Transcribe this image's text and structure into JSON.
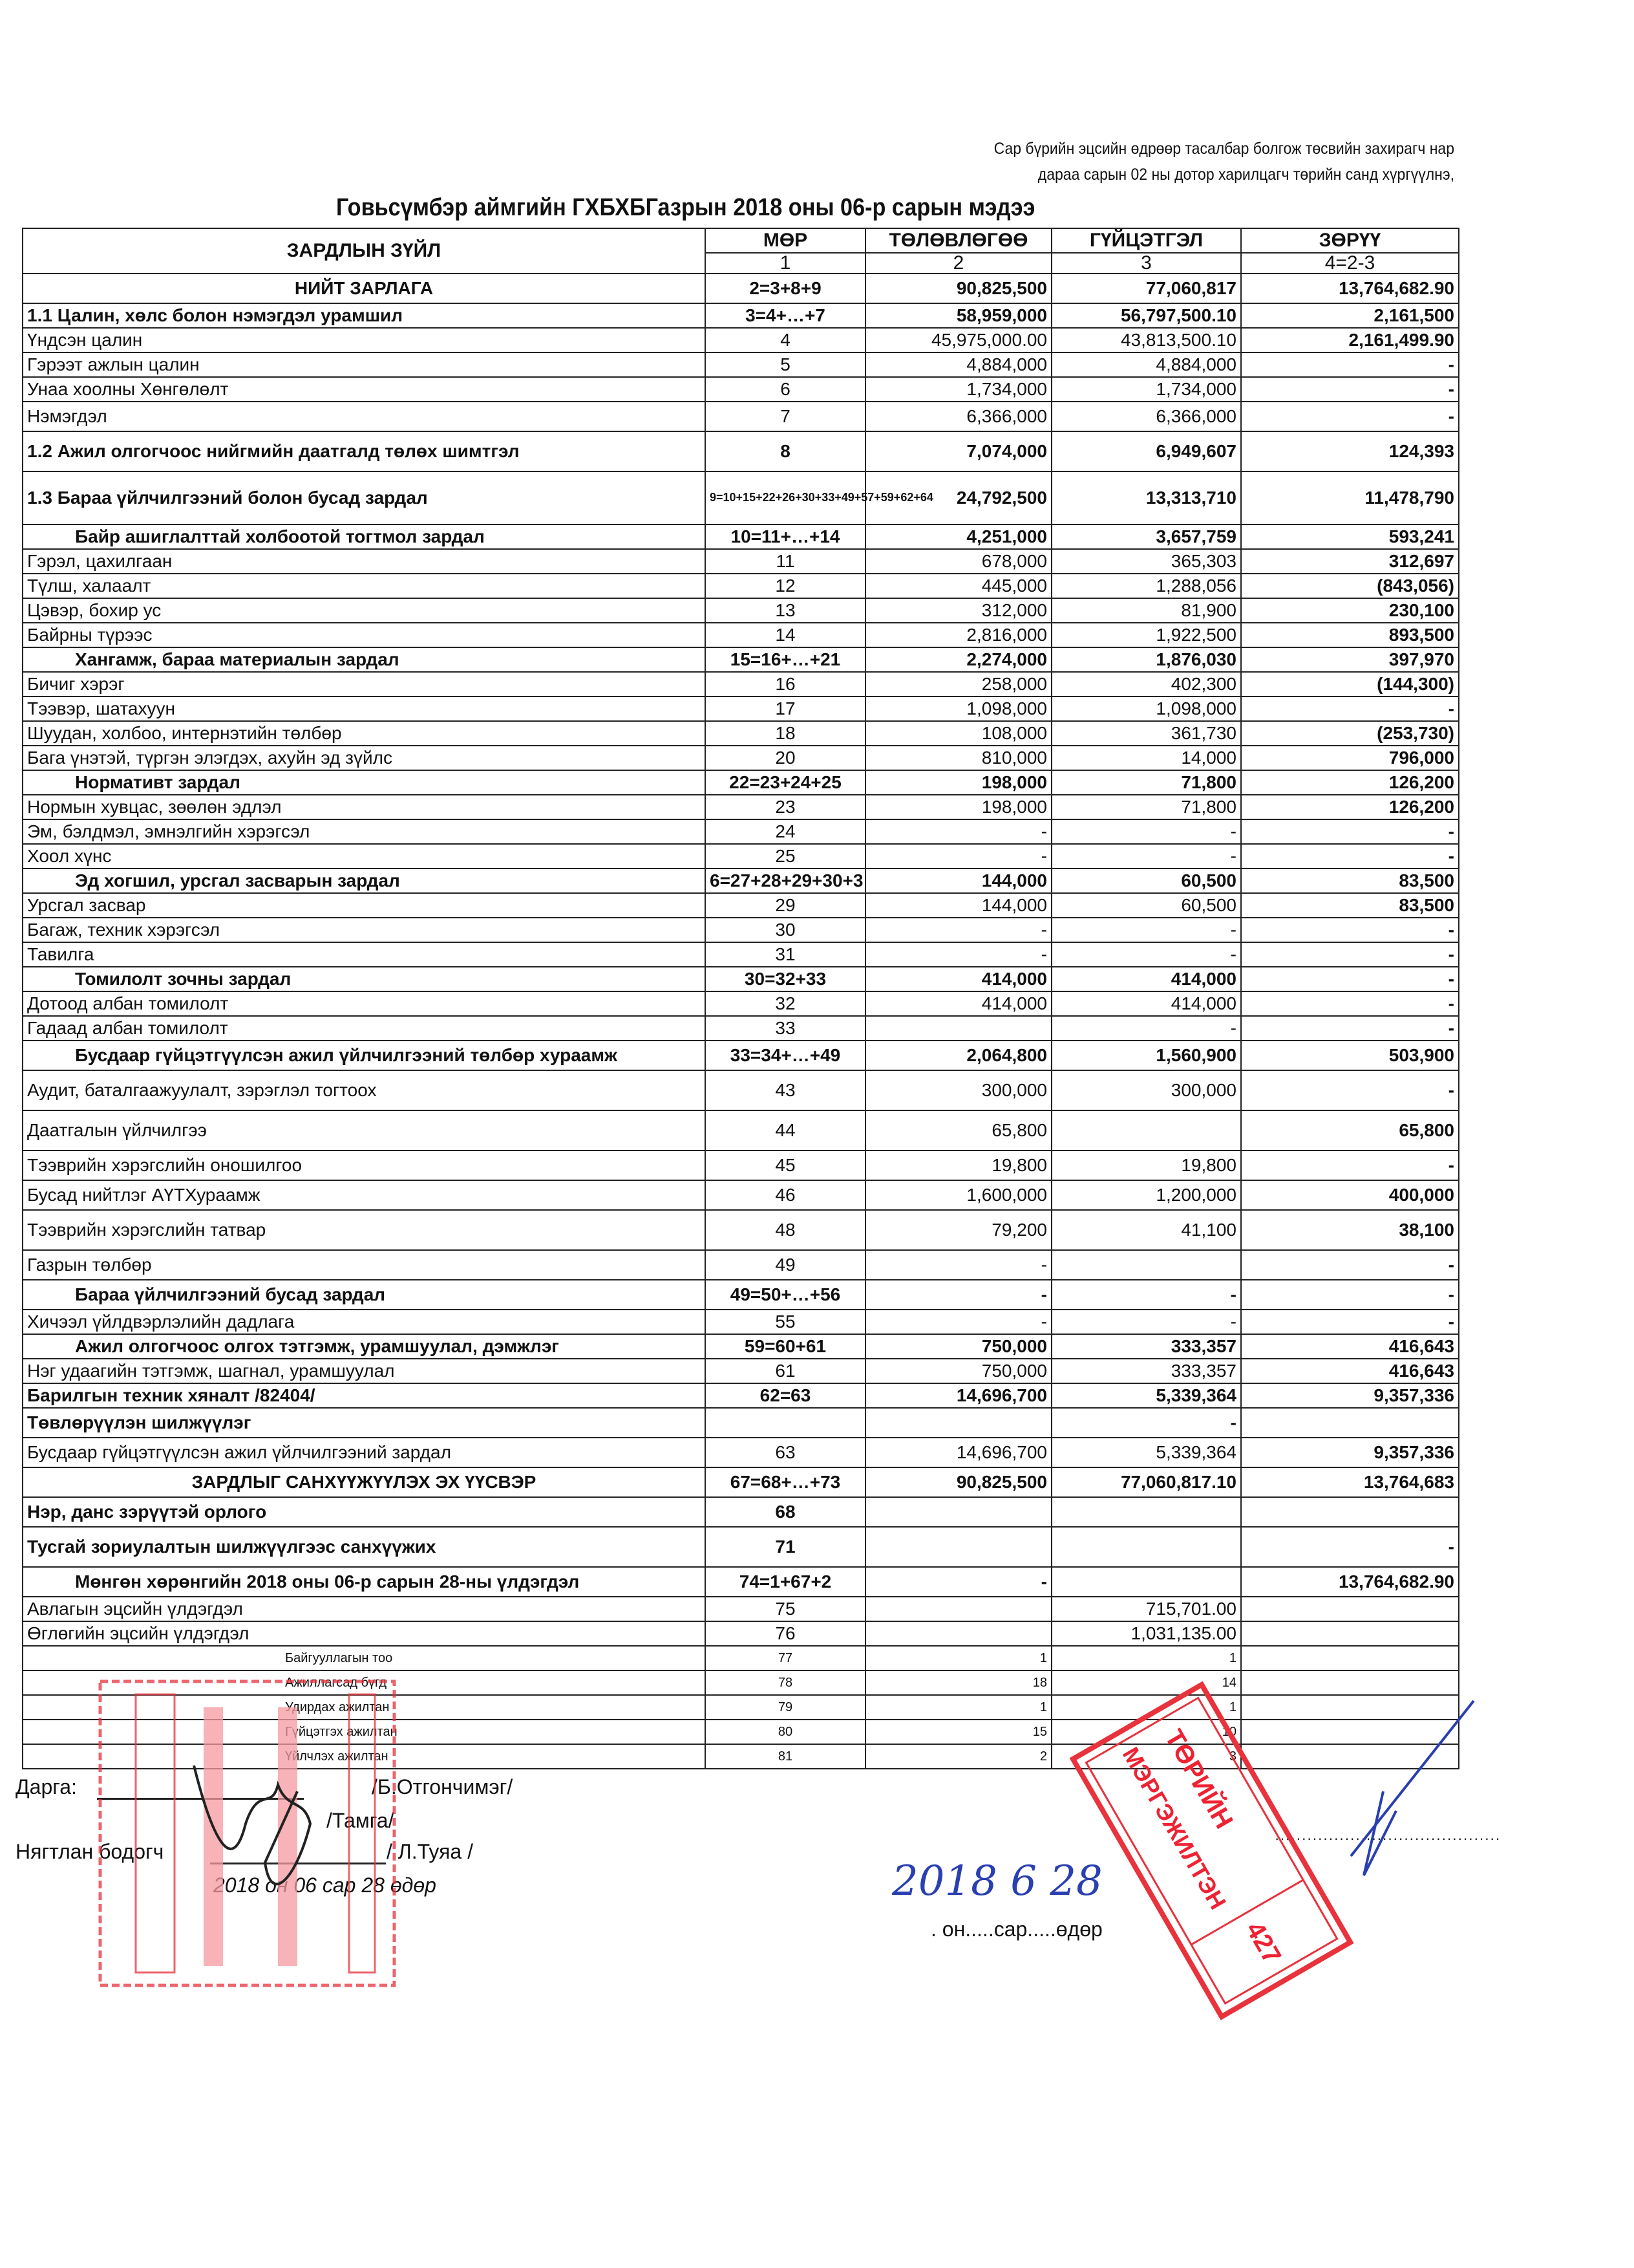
{
  "note": {
    "line1": "Сар бүрийн эцсийн өдрөөр тасалбар болгож төсвийн захирагч нар",
    "line2": "дараа сарын 02 ны  дотор харилцагч төрийн санд хүргүүлнэ,"
  },
  "title": "Говьсүмбэр аймгийн ГХБХБГазрын 2018 оны 06-р сарын мэдээ",
  "table": {
    "headers": {
      "item": "ЗАРДЛЫН ЗҮЙЛ",
      "mor": "МӨР",
      "plan": "ТӨЛӨВЛӨГӨӨ",
      "actual": "ГҮЙЦЭТГЭЛ",
      "diff": "ЗӨРҮҮ",
      "mor_n": "1",
      "plan_n": "2",
      "actual_n": "3",
      "diff_n": "4=2-3"
    },
    "rows": [
      {
        "label": "НИЙТ ЗАРЛАГА",
        "mor": "2=3+8+9",
        "plan": "90,825,500",
        "actual": "77,060,817",
        "diff": "13,764,682.90",
        "style": "b center mid"
      },
      {
        "label": "1.1 Цалин, хөлс болон нэмэгдэл урамшил",
        "mor": "3=4+…+7",
        "plan": "58,959,000",
        "actual": "56,797,500.10",
        "diff": "2,161,500",
        "style": "b"
      },
      {
        "label": "Үндсэн цалин",
        "mor": "4",
        "plan": "45,975,000.00",
        "actual": "43,813,500.10",
        "diff": "2,161,499.90",
        "style": "dbold"
      },
      {
        "label": "Гэрээт ажлын цалин",
        "mor": "5",
        "plan": "4,884,000",
        "actual": "4,884,000",
        "diff": "-",
        "style": "dbold"
      },
      {
        "label": "Унаа хоолны Хөнгөлөлт",
        "mor": "6",
        "plan": "1,734,000",
        "actual": "1,734,000",
        "diff": "-",
        "style": "dbold"
      },
      {
        "label": "Нэмэгдэл",
        "mor": "7",
        "plan": "6,366,000",
        "actual": "6,366,000",
        "diff": "-",
        "style": "dbold mid"
      },
      {
        "label": "1.2 Ажил олгогчоос нийгмийн даатгалд төлөх шимтгэл",
        "mor": "8",
        "plan": "7,074,000",
        "actual": "6,949,607",
        "diff": "124,393",
        "style": "b tall"
      },
      {
        "label": "1.3 Бараа үйлчилгээний болон бусад зардал",
        "mor": "9=10+15+22+26+30+33+49+57+59+62+64",
        "plan": "24,792,500",
        "actual": "13,313,710",
        "diff": "11,478,790",
        "style": "b xtall"
      },
      {
        "label": "Байр ашиглалттай холбоотой тогтмол зардал",
        "mor": "10=11+…+14",
        "plan": "4,251,000",
        "actual": "3,657,759",
        "diff": "593,241",
        "style": "b c"
      },
      {
        "label": "Гэрэл, цахилгаан",
        "mor": "11",
        "plan": "678,000",
        "actual": "365,303",
        "diff": "312,697",
        "style": "dbold"
      },
      {
        "label": "Түлш, халаалт",
        "mor": "12",
        "plan": "445,000",
        "actual": "1,288,056",
        "diff": "(843,056)",
        "style": "dbold"
      },
      {
        "label": "Цэвэр, бохир ус",
        "mor": "13",
        "plan": "312,000",
        "actual": "81,900",
        "diff": "230,100",
        "style": "dbold"
      },
      {
        "label": "Байрны түрээс",
        "mor": "14",
        "plan": "2,816,000",
        "actual": "1,922,500",
        "diff": "893,500",
        "style": "dbold"
      },
      {
        "label": "Хангамж,  бараа материалын зардал",
        "mor": "15=16+…+21",
        "plan": "2,274,000",
        "actual": "1,876,030",
        "diff": "397,970",
        "style": "b c"
      },
      {
        "label": "Бичиг хэрэг",
        "mor": "16",
        "plan": "258,000",
        "actual": "402,300",
        "diff": "(144,300)",
        "style": "dbold"
      },
      {
        "label": "Тээвэр, шатахуун",
        "mor": "17",
        "plan": "1,098,000",
        "actual": "1,098,000",
        "diff": "-",
        "style": "dbold"
      },
      {
        "label": "Шуудан, холбоо, интернэтийн төлбөр",
        "mor": "18",
        "plan": "108,000",
        "actual": "361,730",
        "diff": "(253,730)",
        "style": "dbold"
      },
      {
        "label": "Бага үнэтэй, түргэн элэгдэх, ахуйн эд зүйлс",
        "mor": "20",
        "plan": "810,000",
        "actual": "14,000",
        "diff": "796,000",
        "style": "dbold"
      },
      {
        "label": "Нормативт зардал",
        "mor": "22=23+24+25",
        "plan": "198,000",
        "actual": "71,800",
        "diff": "126,200",
        "style": "b c"
      },
      {
        "label": "Нормын хувцас, зөөлөн эдлэл",
        "mor": "23",
        "plan": "198,000",
        "actual": "71,800",
        "diff": "126,200",
        "style": "dbold"
      },
      {
        "label": "Эм, бэлдмэл, эмнэлгийн хэрэгсэл",
        "mor": "24",
        "plan": "-",
        "actual": "-",
        "diff": "-",
        "style": "dbold"
      },
      {
        "label": "Хоол хүнс",
        "mor": "25",
        "plan": "-",
        "actual": "-",
        "diff": "-",
        "style": "dbold"
      },
      {
        "label": "Эд хогшил, урсгал засварын зардал",
        "mor": "6=27+28+29+30+3",
        "plan": "144,000",
        "actual": "60,500",
        "diff": "83,500",
        "style": "b c"
      },
      {
        "label": "Урсгал засвар",
        "mor": "29",
        "plan": "144,000",
        "actual": "60,500",
        "diff": "83,500",
        "style": "dbold"
      },
      {
        "label": "Багаж, техник хэрэгсэл",
        "mor": "30",
        "plan": "-",
        "actual": "-",
        "diff": "-",
        "style": "dbold"
      },
      {
        "label": "Тавилга",
        "mor": "31",
        "plan": "-",
        "actual": "-",
        "diff": "-",
        "style": "dbold"
      },
      {
        "label": "Томилолт зочны зардал",
        "mor": "30=32+33",
        "plan": "414,000",
        "actual": "414,000",
        "diff": "-",
        "style": "b c"
      },
      {
        "label": "Дотоод албан томилолт",
        "mor": "32",
        "plan": "414,000",
        "actual": "414,000",
        "diff": "-",
        "style": "dbold"
      },
      {
        "label": "Гадаад албан томилолт",
        "mor": "33",
        "plan": "",
        "actual": "-",
        "diff": "-",
        "style": "dbold"
      },
      {
        "label": "Бусдаар гүйцэтгүүлсэн ажил үйлчилгээний төлбөр хураамж",
        "mor": "33=34+…+49",
        "plan": "2,064,800",
        "actual": "1,560,900",
        "diff": "503,900",
        "style": "b c mid"
      },
      {
        "label": "Аудит, баталгаажуулалт, зэрэглэл тогтоох",
        "mor": "43",
        "plan": "300,000",
        "actual": "300,000",
        "diff": "-",
        "style": "dbold tall"
      },
      {
        "label": "Даатгалын үйлчилгээ",
        "mor": "44",
        "plan": "65,800",
        "actual": "",
        "diff": "65,800",
        "style": "dbold tall"
      },
      {
        "label": "Тээврийн хэрэгслийн оношилгоо",
        "mor": "45",
        "plan": "19,800",
        "actual": "19,800",
        "diff": "-",
        "style": "dbold mid"
      },
      {
        "label": "Бусад нийтлэг АҮТХураамж",
        "mor": "46",
        "plan": "1,600,000",
        "actual": "1,200,000",
        "diff": "400,000",
        "style": "dbold mid"
      },
      {
        "label": "Тээврийн хэрэгслийн татвар",
        "mor": "48",
        "plan": "79,200",
        "actual": "41,100",
        "diff": "38,100",
        "style": "dbold tall"
      },
      {
        "label": "Газрын төлбөр",
        "mor": "49",
        "plan": "-",
        "actual": "",
        "diff": "-",
        "style": "dbold mid"
      },
      {
        "label": "Бараа үйлчилгээний бусад зардал",
        "mor": "49=50+…+56",
        "plan": "-",
        "actual": "-",
        "diff": "-",
        "style": "b c mid"
      },
      {
        "label": "Хичээл үйлдвэрлэлийн дадлага",
        "mor": "55",
        "plan": "-",
        "actual": "-",
        "diff": "-",
        "style": "dbold"
      },
      {
        "label": "Ажил олгогчоос олгох тэтгэмж, урамшуулал, дэмжлэг",
        "mor": "59=60+61",
        "plan": "750,000",
        "actual": "333,357",
        "diff": "416,643",
        "style": "b c"
      },
      {
        "label": "Нэг удаагийн тэтгэмж, шагнал, урамшуулал",
        "mor": "61",
        "plan": "750,000",
        "actual": "333,357",
        "diff": "416,643",
        "style": "dbold"
      },
      {
        "label": "Барилгын техник хяналт /82404/",
        "mor": "62=63",
        "plan": "14,696,700",
        "actual": "5,339,364",
        "diff": "9,357,336",
        "style": "b"
      },
      {
        "label": "Төвлөрүүлэн шилжүүлэг",
        "mor": "",
        "plan": "",
        "actual": "-",
        "diff": "",
        "style": "b mid"
      },
      {
        "label": "Бусдаар гүйцэтгүүлсэн ажил үйлчилгээний зардал",
        "mor": "63",
        "plan": "14,696,700",
        "actual": "5,339,364",
        "diff": "9,357,336",
        "style": "dbold mid"
      },
      {
        "label": "ЗАРДЛЫГ САНХҮҮЖҮҮЛЭХ ЭХ ҮҮСВЭР",
        "mor": "67=68+…+73",
        "plan": "90,825,500",
        "actual": "77,060,817.10",
        "diff": "13,764,683",
        "style": "b center mid"
      },
      {
        "label": "Нэр, данс зэрүүтэй орлого",
        "mor": "68",
        "plan": "",
        "actual": "",
        "diff": "",
        "style": "b mid"
      },
      {
        "label": "Тусгай зориулалтын шилжүүлгээс санхүүжих",
        "mor": "71",
        "plan": "",
        "actual": "",
        "diff": "-",
        "style": "b tall"
      },
      {
        "label": "Мөнгөн хөрөнгийн 2018 оны 06-р сарын 28-ны үлдэгдэл",
        "mor": "74=1+67+2",
        "plan": "-",
        "actual": "",
        "diff": "13,764,682.90",
        "style": "b c mid"
      },
      {
        "label": "Авлагын эцсийн үлдэгдэл",
        "mor": "75",
        "plan": "",
        "actual": "715,701.00",
        "diff": "",
        "style": "plain"
      },
      {
        "label": "Өглөгийн эцсийн үлдэгдэл",
        "mor": "76",
        "plan": "",
        "actual": "1,031,135.00",
        "diff": "",
        "style": "plain"
      },
      {
        "label": "Байгууллагын тоо",
        "mor": "77",
        "plan": "1",
        "actual": "1",
        "diff": "",
        "style": "small"
      },
      {
        "label": "Ажиллагсад бүгд",
        "mor": "78",
        "plan": "18",
        "actual": "14",
        "diff": "",
        "style": "small"
      },
      {
        "label": "Удирдах ажилтан",
        "mor": "79",
        "plan": "1",
        "actual": "1",
        "diff": "",
        "style": "small"
      },
      {
        "label": "Гүйцэтгэх ажилтан",
        "mor": "80",
        "plan": "15",
        "actual": "10",
        "diff": "",
        "style": "small"
      },
      {
        "label": "Үйлчлэх ажилтан",
        "mor": "81",
        "plan": "2",
        "actual": "3",
        "diff": "",
        "style": "small"
      }
    ]
  },
  "footer": {
    "director_label": "Дарга:",
    "director_name": "/Б.Отгончимэг/",
    "seal_label": "/Тамга/",
    "accountant_label": "Нягтлан бодогч",
    "accountant_name": "/ Л.Туяа /",
    "date_left": "2018 он 06 сар 28  өдөр",
    "date_right_printed": ". он.....сар.....өдөр",
    "date_right_handwritten": "2018 6 28"
  },
  "stamp": {
    "line1": "ТӨРИЙН",
    "line2": "МЭРГЭЖИЛТЭН",
    "number": "427",
    "color": "#e8323c"
  },
  "colors": {
    "ink": "#111111",
    "stamp_red": "#e8323c",
    "signature_blue": "#2a3fb0"
  }
}
